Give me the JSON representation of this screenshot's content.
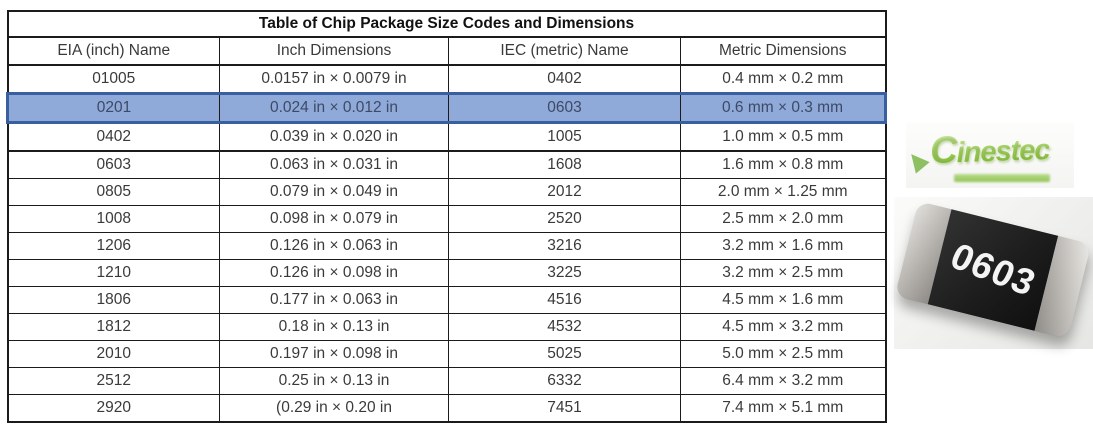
{
  "title": "Table of Chip Package Size Codes and Dimensions",
  "table": {
    "headers": [
      "EIA (inch) Name",
      "Inch Dimensions",
      "IEC (metric) Name",
      "Metric Dimensions"
    ],
    "rows": [
      [
        "01005",
        "0.0157 in × 0.0079 in",
        "0402",
        "0.4 mm × 0.2 mm"
      ],
      [
        "0201",
        "0.024 in × 0.012 in",
        "0603",
        "0.6 mm × 0.3 mm"
      ],
      [
        "0402",
        "0.039 in × 0.020 in",
        "1005",
        "1.0 mm × 0.5 mm"
      ],
      [
        "0603",
        "0.063 in × 0.031 in",
        "1608",
        "1.6 mm × 0.8 mm"
      ],
      [
        "0805",
        "0.079 in × 0.049 in",
        "2012",
        "2.0 mm × 1.25 mm"
      ],
      [
        "1008",
        "0.098 in × 0.079 in",
        "2520",
        "2.5 mm × 2.0 mm"
      ],
      [
        "1206",
        "0.126 in × 0.063 in",
        "3216",
        "3.2 mm × 1.6 mm"
      ],
      [
        "1210",
        "0.126 in × 0.098 in",
        "3225",
        "3.2 mm × 2.5 mm"
      ],
      [
        "1806",
        "0.177 in × 0.063 in",
        "4516",
        "4.5 mm × 1.6 mm"
      ],
      [
        "1812",
        "0.18 in × 0.13 in",
        "4532",
        "4.5 mm × 3.2 mm"
      ],
      [
        "2010",
        "0.197 in × 0.098 in",
        "5025",
        "5.0 mm × 2.5 mm"
      ],
      [
        "2512",
        "0.25 in × 0.13 in",
        "6332",
        "6.4 mm × 3.2 mm"
      ],
      [
        "2920",
        "(0.29 in × 0.20 in",
        "7451",
        "7.4 mm × 5.1 mm"
      ]
    ],
    "highlighted_row_index": 1,
    "thick_divider_after_row": 2
  },
  "logo": {
    "text": "Cinestec"
  },
  "chip": {
    "label": "0603"
  },
  "colors": {
    "highlight_fill": "#8fa9d8",
    "highlight_border": "#3a5f9f",
    "highlight_text": "#3d4a66",
    "table_border": "#1b1b1b",
    "table_text": "#3a3a3a",
    "logo_green": "#8dc63f",
    "chip_body": "#1d1d1d"
  }
}
